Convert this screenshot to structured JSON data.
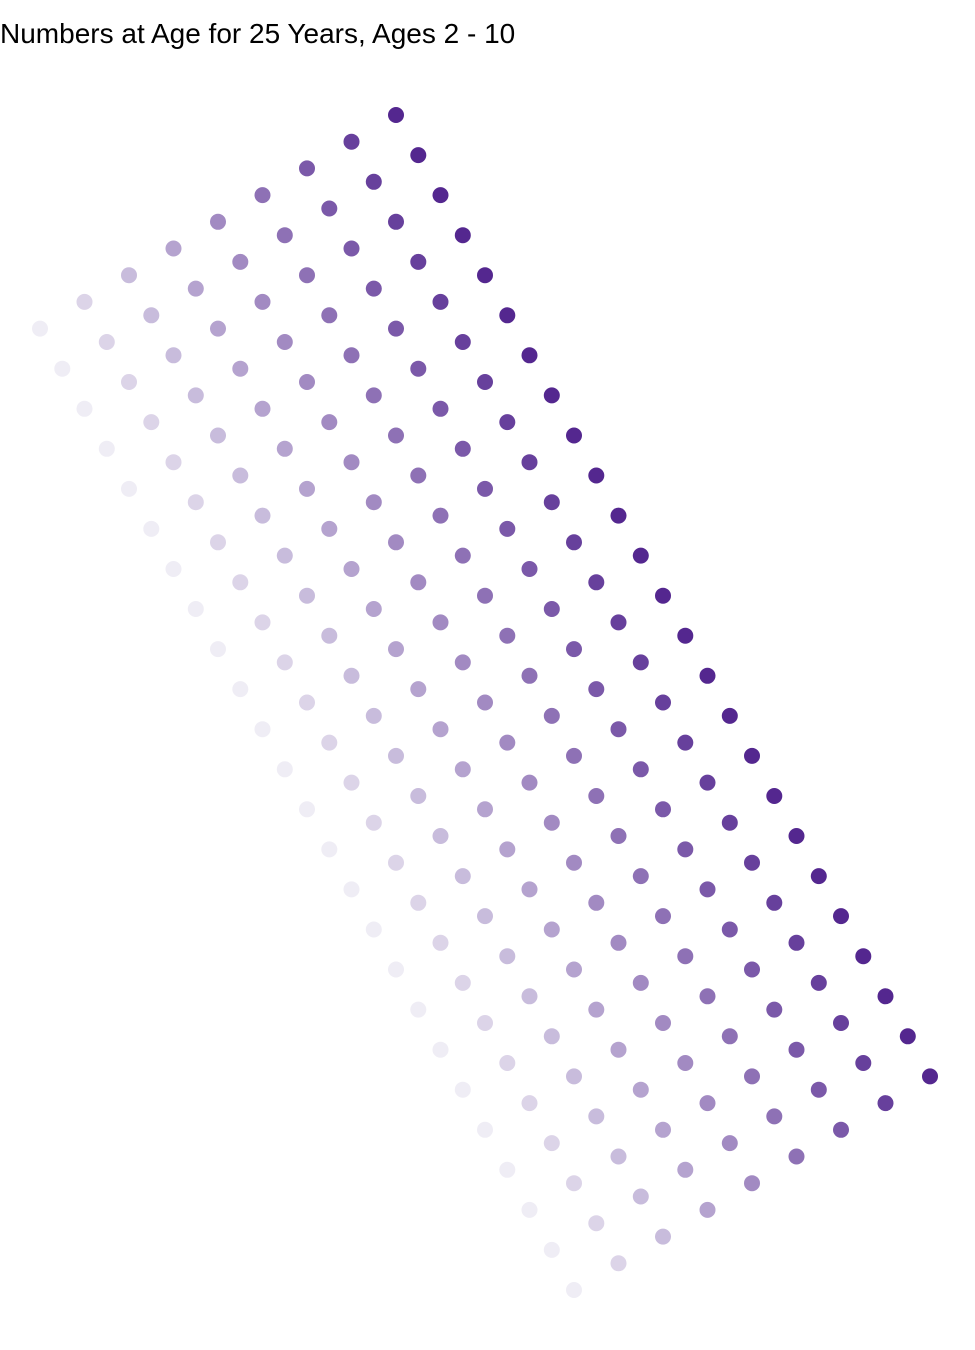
{
  "chart_data": {
    "type": "scatter",
    "title": "Numbers at Age for 25 Years, Ages 2 - 10",
    "xlabel": "",
    "ylabel": "",
    "grid": false,
    "axes_visible": false,
    "legend": "none",
    "color_low": "#efedf5",
    "color_high": "#54278f",
    "series": [
      {
        "age": 2,
        "points": [
          [
            -10,
            -1
          ],
          [
            -9,
            -4
          ],
          [
            -8,
            -7
          ],
          [
            -7,
            -10
          ],
          [
            -6,
            -13
          ],
          [
            -5,
            -16
          ],
          [
            -4,
            -19
          ],
          [
            -3,
            -22
          ],
          [
            -2,
            -25
          ],
          [
            -1,
            -28
          ],
          [
            0,
            -31
          ],
          [
            1,
            -34
          ],
          [
            2,
            -37
          ],
          [
            3,
            -40
          ],
          [
            4,
            -43
          ],
          [
            5,
            -46
          ],
          [
            6,
            -49
          ],
          [
            7,
            -52
          ],
          [
            8,
            -55
          ],
          [
            9,
            -58
          ],
          [
            10,
            -61
          ],
          [
            11,
            -64
          ],
          [
            12,
            -67
          ],
          [
            13,
            -70
          ],
          [
            14,
            -73
          ]
        ]
      },
      {
        "age": 3,
        "points": [
          [
            -8,
            1
          ],
          [
            -7,
            -2
          ],
          [
            -6,
            -5
          ],
          [
            -5,
            -8
          ],
          [
            -4,
            -11
          ],
          [
            -3,
            -14
          ],
          [
            -2,
            -17
          ],
          [
            -1,
            -20
          ],
          [
            0,
            -23
          ],
          [
            1,
            -26
          ],
          [
            2,
            -29
          ],
          [
            3,
            -32
          ],
          [
            4,
            -35
          ],
          [
            5,
            -38
          ],
          [
            6,
            -41
          ],
          [
            7,
            -44
          ],
          [
            8,
            -47
          ],
          [
            9,
            -50
          ],
          [
            10,
            -53
          ],
          [
            11,
            -56
          ],
          [
            12,
            -59
          ],
          [
            13,
            -62
          ],
          [
            14,
            -65
          ],
          [
            15,
            -68
          ],
          [
            16,
            -71
          ]
        ]
      },
      {
        "age": 4,
        "points": [
          [
            -6,
            3
          ],
          [
            -5,
            0
          ],
          [
            -4,
            -3
          ],
          [
            -3,
            -6
          ],
          [
            -2,
            -9
          ],
          [
            -1,
            -12
          ],
          [
            0,
            -15
          ],
          [
            1,
            -18
          ],
          [
            2,
            -21
          ],
          [
            3,
            -24
          ],
          [
            4,
            -27
          ],
          [
            5,
            -30
          ],
          [
            6,
            -33
          ],
          [
            7,
            -36
          ],
          [
            8,
            -39
          ],
          [
            9,
            -42
          ],
          [
            10,
            -45
          ],
          [
            11,
            -48
          ],
          [
            12,
            -51
          ],
          [
            13,
            -54
          ],
          [
            14,
            -57
          ],
          [
            15,
            -60
          ],
          [
            16,
            -63
          ],
          [
            17,
            -66
          ],
          [
            18,
            -69
          ]
        ]
      },
      {
        "age": 5,
        "points": [
          [
            -4,
            5
          ],
          [
            -3,
            2
          ],
          [
            -2,
            -1
          ],
          [
            -1,
            -4
          ],
          [
            0,
            -7
          ],
          [
            1,
            -10
          ],
          [
            2,
            -13
          ],
          [
            3,
            -16
          ],
          [
            4,
            -19
          ],
          [
            5,
            -22
          ],
          [
            6,
            -25
          ],
          [
            7,
            -28
          ],
          [
            8,
            -31
          ],
          [
            9,
            -34
          ],
          [
            10,
            -37
          ],
          [
            11,
            -40
          ],
          [
            12,
            -43
          ],
          [
            13,
            -46
          ],
          [
            14,
            -49
          ],
          [
            15,
            -52
          ],
          [
            16,
            -55
          ],
          [
            17,
            -58
          ],
          [
            18,
            -61
          ],
          [
            19,
            -64
          ],
          [
            20,
            -67
          ]
        ]
      },
      {
        "age": 6,
        "points": [
          [
            -2,
            7
          ],
          [
            -1,
            4
          ],
          [
            0,
            1
          ],
          [
            1,
            -2
          ],
          [
            2,
            -5
          ],
          [
            3,
            -8
          ],
          [
            4,
            -11
          ],
          [
            5,
            -14
          ],
          [
            6,
            -17
          ],
          [
            7,
            -20
          ],
          [
            8,
            -23
          ],
          [
            9,
            -26
          ],
          [
            10,
            -29
          ],
          [
            11,
            -32
          ],
          [
            12,
            -35
          ],
          [
            13,
            -38
          ],
          [
            14,
            -41
          ],
          [
            15,
            -44
          ],
          [
            16,
            -47
          ],
          [
            17,
            -50
          ],
          [
            18,
            -53
          ],
          [
            19,
            -56
          ],
          [
            20,
            -59
          ],
          [
            21,
            -62
          ],
          [
            22,
            -65
          ]
        ]
      },
      {
        "age": 7,
        "points": [
          [
            0,
            9
          ],
          [
            1,
            6
          ],
          [
            2,
            3
          ],
          [
            3,
            0
          ],
          [
            4,
            -3
          ],
          [
            5,
            -6
          ],
          [
            6,
            -9
          ],
          [
            7,
            -12
          ],
          [
            8,
            -15
          ],
          [
            9,
            -18
          ],
          [
            10,
            -21
          ],
          [
            11,
            -24
          ],
          [
            12,
            -27
          ],
          [
            13,
            -30
          ],
          [
            14,
            -33
          ],
          [
            15,
            -36
          ],
          [
            16,
            -39
          ],
          [
            17,
            -42
          ],
          [
            18,
            -45
          ],
          [
            19,
            -48
          ],
          [
            20,
            -51
          ],
          [
            21,
            -54
          ],
          [
            22,
            -57
          ],
          [
            23,
            -60
          ],
          [
            24,
            -63
          ]
        ]
      },
      {
        "age": 8,
        "points": [
          [
            2,
            11
          ],
          [
            3,
            8
          ],
          [
            4,
            5
          ],
          [
            5,
            2
          ],
          [
            6,
            -1
          ],
          [
            7,
            -4
          ],
          [
            8,
            -7
          ],
          [
            9,
            -10
          ],
          [
            10,
            -13
          ],
          [
            11,
            -16
          ],
          [
            12,
            -19
          ],
          [
            13,
            -22
          ],
          [
            14,
            -25
          ],
          [
            15,
            -28
          ],
          [
            16,
            -31
          ],
          [
            17,
            -34
          ],
          [
            18,
            -37
          ],
          [
            19,
            -40
          ],
          [
            20,
            -43
          ],
          [
            21,
            -46
          ],
          [
            22,
            -49
          ],
          [
            23,
            -52
          ],
          [
            24,
            -55
          ],
          [
            25,
            -58
          ],
          [
            26,
            -61
          ]
        ]
      },
      {
        "age": 9,
        "points": [
          [
            4,
            13
          ],
          [
            5,
            10
          ],
          [
            6,
            7
          ],
          [
            7,
            4
          ],
          [
            8,
            1
          ],
          [
            9,
            -2
          ],
          [
            10,
            -5
          ],
          [
            11,
            -8
          ],
          [
            12,
            -11
          ],
          [
            13,
            -14
          ],
          [
            14,
            -17
          ],
          [
            15,
            -20
          ],
          [
            16,
            -23
          ],
          [
            17,
            -26
          ],
          [
            18,
            -29
          ],
          [
            19,
            -32
          ],
          [
            20,
            -35
          ],
          [
            21,
            -38
          ],
          [
            22,
            -41
          ],
          [
            23,
            -44
          ],
          [
            24,
            -47
          ],
          [
            25,
            -50
          ],
          [
            26,
            -53
          ],
          [
            27,
            -56
          ],
          [
            28,
            -59
          ]
        ]
      },
      {
        "age": 10,
        "points": [
          [
            6,
            15
          ],
          [
            7,
            12
          ],
          [
            8,
            9
          ],
          [
            9,
            6
          ],
          [
            10,
            3
          ],
          [
            11,
            0
          ],
          [
            12,
            -3
          ],
          [
            13,
            -6
          ],
          [
            14,
            -9
          ],
          [
            15,
            -12
          ],
          [
            16,
            -15
          ],
          [
            17,
            -18
          ],
          [
            18,
            -21
          ],
          [
            19,
            -24
          ],
          [
            20,
            -27
          ],
          [
            21,
            -30
          ],
          [
            22,
            -33
          ],
          [
            23,
            -36
          ],
          [
            24,
            -39
          ],
          [
            25,
            -42
          ],
          [
            26,
            -45
          ],
          [
            27,
            -48
          ],
          [
            28,
            -51
          ],
          [
            29,
            -54
          ],
          [
            30,
            -57
          ]
        ]
      }
    ]
  }
}
